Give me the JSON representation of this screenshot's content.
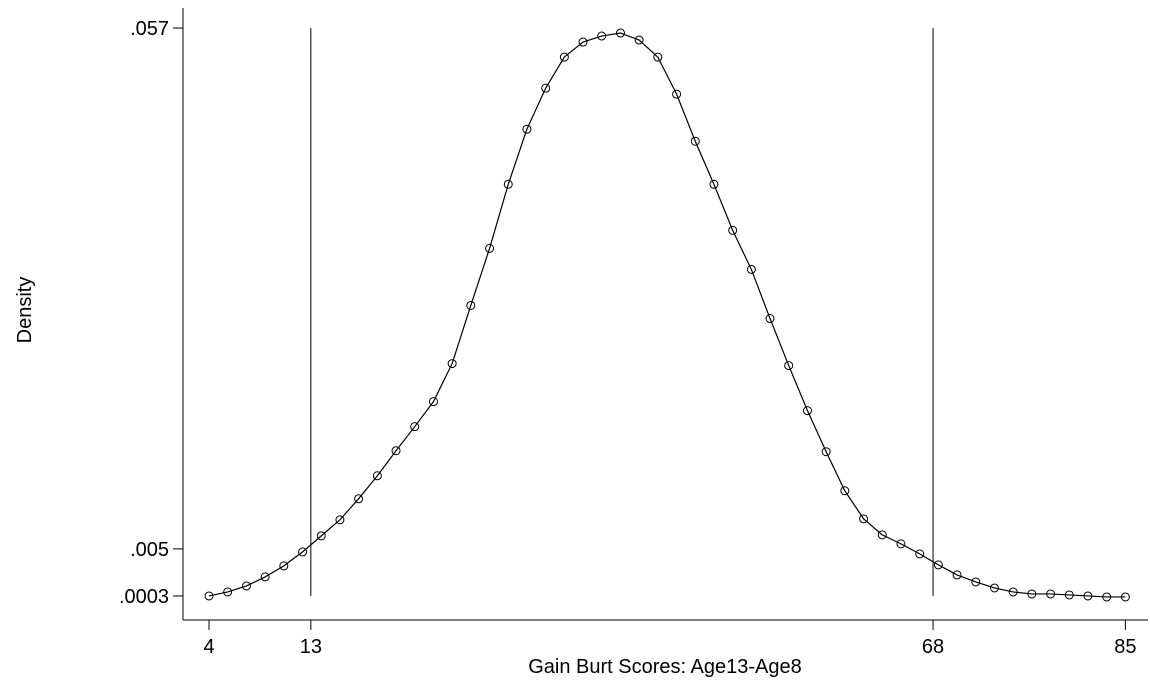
{
  "chart_data": {
    "type": "line",
    "x_label": "Gain Burt Scores: Age13-Age8",
    "y_label": "Density",
    "x": [
      4,
      5.65,
      7.31,
      8.96,
      10.61,
      12.27,
      13.92,
      15.57,
      17.22,
      18.88,
      20.53,
      22.18,
      23.84,
      25.49,
      27.14,
      28.8,
      30.45,
      32.1,
      33.76,
      35.41,
      37.06,
      38.71,
      40.37,
      42.02,
      43.67,
      45.33,
      46.98,
      48.63,
      50.29,
      51.94,
      53.59,
      55.24,
      56.9,
      58.55,
      60.2,
      61.86,
      63.51,
      65.16,
      66.82,
      68.47,
      70.12,
      71.78,
      73.43,
      75.08,
      76.73,
      78.39,
      80.04,
      81.69,
      83.35,
      85
    ],
    "series": [
      {
        "color": "#000000",
        "marker": "circle",
        "values": [
          0.0003,
          0.0007,
          0.0013,
          0.0022,
          0.0033,
          0.0047,
          0.0063,
          0.0079,
          0.01,
          0.0123,
          0.0148,
          0.0172,
          0.0197,
          0.0235,
          0.0293,
          0.035,
          0.0414,
          0.0469,
          0.051,
          0.0541,
          0.0556,
          0.0562,
          0.0565,
          0.0558,
          0.0541,
          0.0504,
          0.0457,
          0.0414,
          0.0368,
          0.0329,
          0.028,
          0.0233,
          0.0188,
          0.0147,
          0.0108,
          0.008,
          0.0064,
          0.0055,
          0.0045,
          0.0034,
          0.0024,
          0.0017,
          0.0011,
          0.0007,
          0.0005,
          0.0005,
          0.0004,
          0.0003,
          0.0002,
          0.0002
        ]
      }
    ],
    "xlines": [
      13,
      68
    ],
    "xlim": [
      1.7,
      87
    ],
    "ylim": [
      -0.0021,
      0.059
    ],
    "xticks": [
      4,
      13,
      68,
      85
    ],
    "yticks": [
      {
        "value": 0.0003,
        "label": ".0003"
      },
      {
        "value": 0.005,
        "label": ".005"
      },
      {
        "value": 0.057,
        "label": ".057"
      }
    ],
    "grid": false
  }
}
